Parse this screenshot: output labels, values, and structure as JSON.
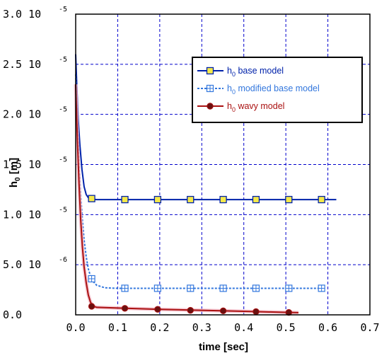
{
  "chart_data": {
    "type": "line",
    "xlabel": "time [sec]",
    "ylabel": "h",
    "ylabel_sub": "0",
    "ylabel_unit": "[m]",
    "xlim": [
      0,
      0.7
    ],
    "ylim": [
      0,
      3e-05
    ],
    "grid": true,
    "grid_color": "#0000cc",
    "legend_placement": "top-right",
    "x_ticks": [
      {
        "value": 0.0,
        "label": "0.0"
      },
      {
        "value": 0.1,
        "label": "0.1"
      },
      {
        "value": 0.2,
        "label": "0.2"
      },
      {
        "value": 0.3,
        "label": "0.3"
      },
      {
        "value": 0.4,
        "label": "0.4"
      },
      {
        "value": 0.5,
        "label": "0.5"
      },
      {
        "value": 0.6,
        "label": "0.6"
      },
      {
        "value": 0.7,
        "label": "0.7"
      }
    ],
    "y_ticks": [
      {
        "value": 0,
        "mantissa": "0.0",
        "exp": ""
      },
      {
        "value": 5e-06,
        "mantissa": "5.0 10",
        "exp": "-6"
      },
      {
        "value": 1e-05,
        "mantissa": "1.0 10",
        "exp": "-5"
      },
      {
        "value": 1.5e-05,
        "mantissa": "1.5 10",
        "exp": "-5"
      },
      {
        "value": 2e-05,
        "mantissa": "2.0 10",
        "exp": "-5"
      },
      {
        "value": 2.5e-05,
        "mantissa": "2.5 10",
        "exp": "-5"
      },
      {
        "value": 3e-05,
        "mantissa": "3.0 10",
        "exp": "-5"
      }
    ],
    "series": [
      {
        "name": "base model",
        "legend_h": "h",
        "legend_sub": "0",
        "color": "#0022aa",
        "marker": "square-yellow",
        "dashed": false,
        "line": [
          [
            0.0,
            2.6e-05
          ],
          [
            0.003,
            2.25e-05
          ],
          [
            0.006,
            1.95e-05
          ],
          [
            0.01,
            1.7e-05
          ],
          [
            0.015,
            1.45e-05
          ],
          [
            0.02,
            1.28e-05
          ],
          [
            0.025,
            1.2e-05
          ],
          [
            0.03,
            1.17e-05
          ],
          [
            0.038,
            1.155e-05
          ],
          [
            0.05,
            1.15e-05
          ],
          [
            0.62,
            1.15e-05
          ]
        ],
        "markers": [
          [
            0.038,
            1.16e-05
          ],
          [
            0.117,
            1.15e-05
          ],
          [
            0.195,
            1.15e-05
          ],
          [
            0.273,
            1.15e-05
          ],
          [
            0.351,
            1.15e-05
          ],
          [
            0.429,
            1.15e-05
          ],
          [
            0.507,
            1.15e-05
          ],
          [
            0.585,
            1.15e-05
          ]
        ]
      },
      {
        "name": "modified base model",
        "legend_h": "h",
        "legend_sub": "0",
        "color": "#3377dd",
        "marker": "square-cross",
        "dashed": true,
        "line": [
          [
            0.0,
            2.4e-05
          ],
          [
            0.004,
            1.9e-05
          ],
          [
            0.008,
            1.5e-05
          ],
          [
            0.012,
            1.2e-05
          ],
          [
            0.016,
            9.5e-06
          ],
          [
            0.02,
            7.5e-06
          ],
          [
            0.025,
            5.8e-06
          ],
          [
            0.03,
            4.6e-06
          ],
          [
            0.035,
            3.9e-06
          ],
          [
            0.04,
            3.4e-06
          ],
          [
            0.05,
            2.95e-06
          ],
          [
            0.07,
            2.7e-06
          ],
          [
            0.1,
            2.65e-06
          ],
          [
            0.59,
            2.65e-06
          ]
        ],
        "markers": [
          [
            0.038,
            3.6e-06
          ],
          [
            0.117,
            2.65e-06
          ],
          [
            0.195,
            2.65e-06
          ],
          [
            0.273,
            2.65e-06
          ],
          [
            0.351,
            2.65e-06
          ],
          [
            0.429,
            2.65e-06
          ],
          [
            0.507,
            2.65e-06
          ],
          [
            0.585,
            2.65e-06
          ]
        ]
      },
      {
        "name": "wavy model",
        "legend_h": "h",
        "legend_sub": "0",
        "color": "#aa1111",
        "marker": "circle",
        "dashed": false,
        "line": [
          [
            0.0,
            2.3e-05
          ],
          [
            0.004,
            1.75e-05
          ],
          [
            0.008,
            1.3e-05
          ],
          [
            0.012,
            9.5e-06
          ],
          [
            0.016,
            6.8e-06
          ],
          [
            0.02,
            4.8e-06
          ],
          [
            0.025,
            3.2e-06
          ],
          [
            0.03,
            2e-06
          ],
          [
            0.035,
            1.3e-06
          ],
          [
            0.04,
            9e-07
          ],
          [
            0.05,
            7.5e-07
          ],
          [
            0.12,
            6.5e-07
          ],
          [
            0.2,
            5.5e-07
          ],
          [
            0.3,
            4.5e-07
          ],
          [
            0.4,
            3.5e-07
          ],
          [
            0.5,
            2.5e-07
          ],
          [
            0.53,
            2.2e-07
          ]
        ],
        "markers": [
          [
            0.038,
            8.5e-07
          ],
          [
            0.117,
            6.5e-07
          ],
          [
            0.195,
            5.5e-07
          ],
          [
            0.273,
            4.5e-07
          ],
          [
            0.351,
            4e-07
          ],
          [
            0.429,
            3.2e-07
          ],
          [
            0.507,
            2.4e-07
          ]
        ]
      }
    ]
  }
}
